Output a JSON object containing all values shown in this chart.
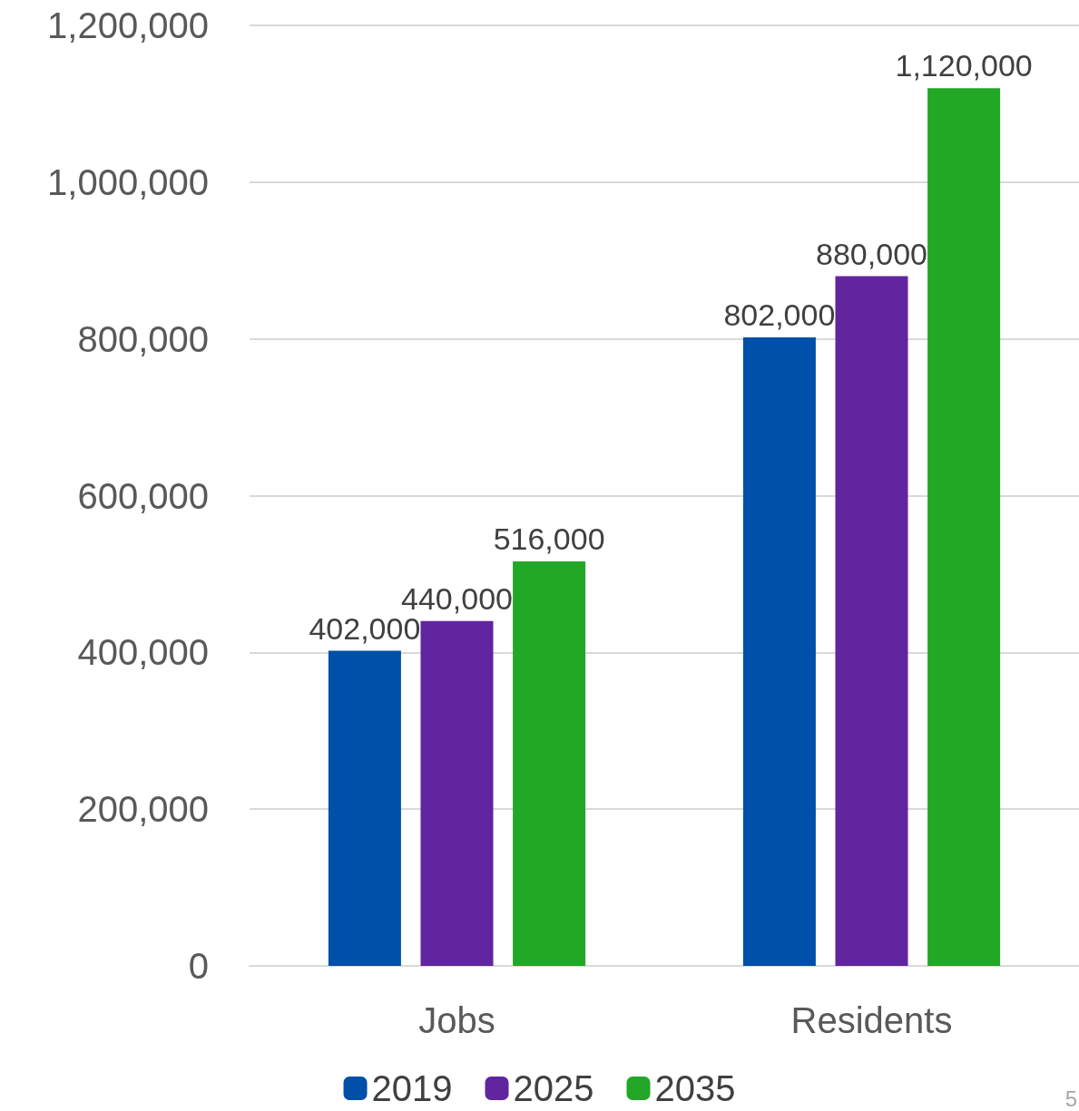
{
  "chart_data": {
    "type": "bar",
    "categories": [
      "Jobs",
      "Residents"
    ],
    "series": [
      {
        "name": "2019",
        "color": "#004fa8",
        "values": [
          402000,
          802000
        ],
        "value_labels": [
          "402,000",
          "802,000"
        ]
      },
      {
        "name": "2025",
        "color": "#6125a0",
        "values": [
          440000,
          880000
        ],
        "value_labels": [
          "440,000",
          "880,000"
        ]
      },
      {
        "name": "2035",
        "color": "#22a727",
        "values": [
          516000,
          1120000
        ],
        "value_labels": [
          "516,000",
          "1,120,000"
        ]
      }
    ],
    "ylim": [
      0,
      1200000
    ],
    "yticks": [
      {
        "value": 0,
        "label": "0"
      },
      {
        "value": 200000,
        "label": "200,000"
      },
      {
        "value": 400000,
        "label": "400,000"
      },
      {
        "value": 600000,
        "label": "600,000"
      },
      {
        "value": 800000,
        "label": "800,000"
      },
      {
        "value": 1000000,
        "label": "1,000,000"
      },
      {
        "value": 1200000,
        "label": "1,200,000"
      }
    ],
    "grid": "y",
    "legend": "bottom",
    "annotations": [
      "5"
    ]
  }
}
